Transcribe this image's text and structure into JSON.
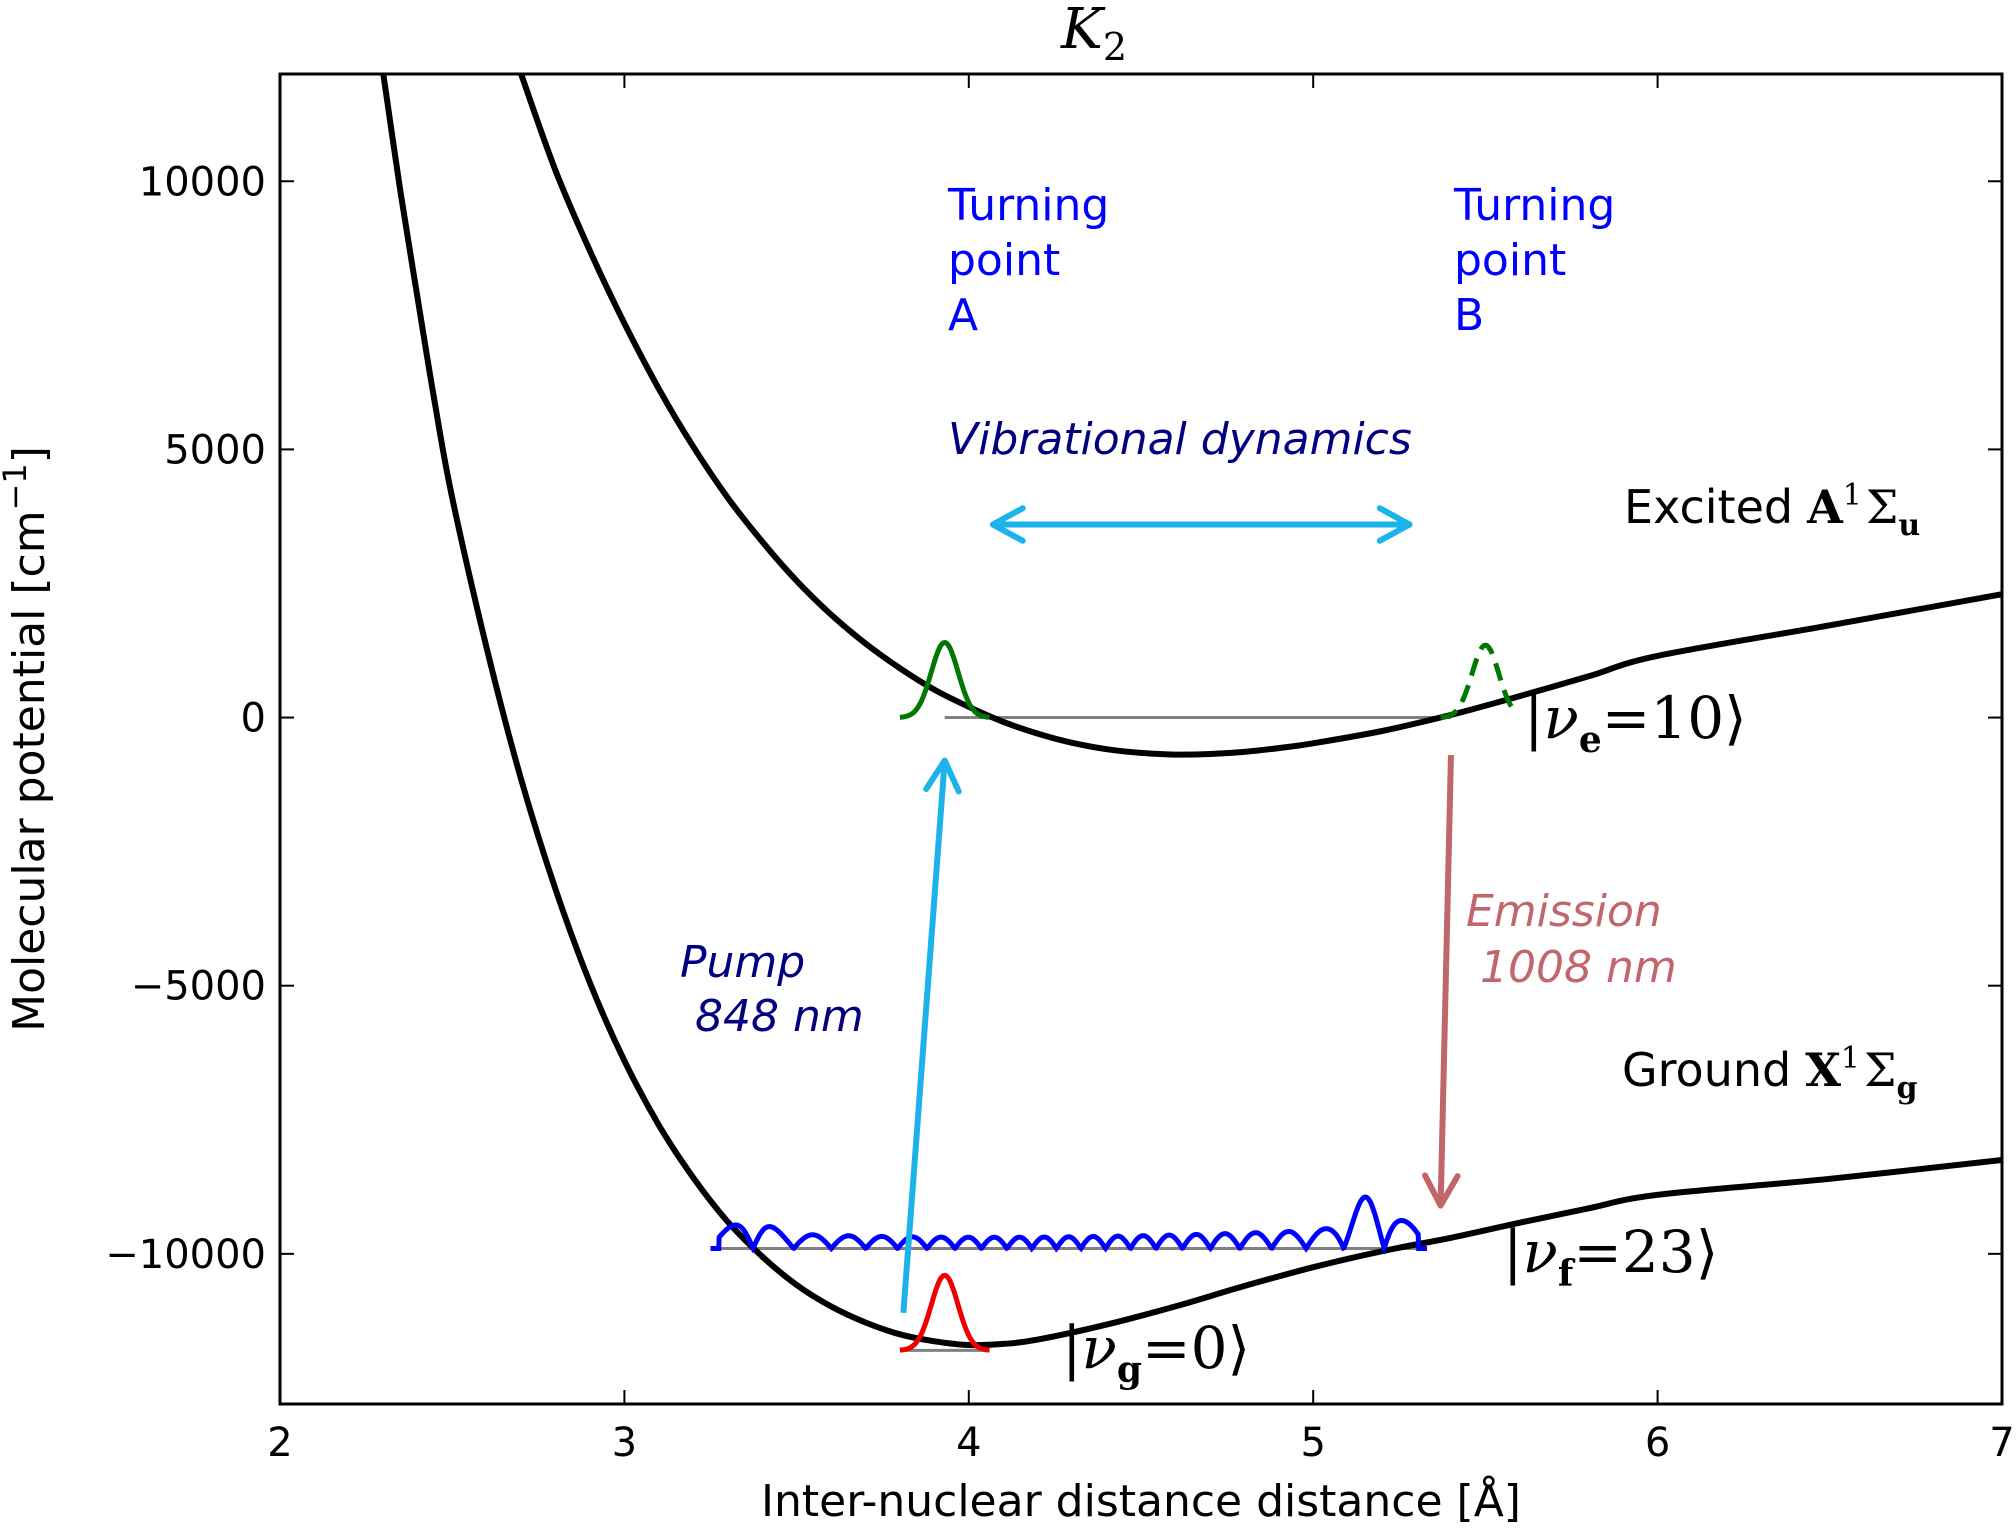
{
  "chart_data": {
    "type": "line",
    "title": "K",
    "title_sub": "2",
    "xlabel": "Inter-nuclear distance distance [Å]",
    "ylabel": "Molecular potential [cm",
    "ylabel_sup": "−1",
    "ylabel_end": "]",
    "xlim": [
      2,
      7
    ],
    "ylim": [
      -12800,
      12000
    ],
    "x_ticks": [
      2,
      3,
      4,
      5,
      6,
      7
    ],
    "x_tick_labels": [
      "2",
      "3",
      "4",
      "5",
      "6",
      "7"
    ],
    "y_ticks": [
      10000,
      5000,
      0,
      -5000,
      -10000
    ],
    "y_tick_labels": [
      "10000",
      "5000",
      "0",
      "−5000",
      "−10000"
    ],
    "grid": false,
    "series": [
      {
        "key": "excited",
        "x": [
          2.7,
          2.8,
          2.9,
          3.0,
          3.1,
          3.2,
          3.3,
          3.4,
          3.5,
          3.6,
          3.7,
          3.8,
          3.9,
          4.0,
          4.1,
          4.2,
          4.3,
          4.4,
          4.5,
          4.6,
          4.7,
          4.8,
          4.9,
          5.0,
          5.2,
          5.4,
          5.6,
          5.8,
          6.0,
          6.5,
          7.0
        ],
        "y": [
          12000,
          10200,
          8700,
          7350,
          6130,
          5050,
          4100,
          3280,
          2550,
          1920,
          1380,
          920,
          520,
          200,
          -80,
          -300,
          -470,
          -590,
          -660,
          -690,
          -680,
          -640,
          -570,
          -480,
          -250,
          50,
          400,
          770,
          1150,
          1720,
          2300
        ]
      },
      {
        "key": "ground",
        "x": [
          2.3,
          2.35,
          2.4,
          2.45,
          2.5,
          2.6,
          2.7,
          2.8,
          2.9,
          3.0,
          3.1,
          3.2,
          3.3,
          3.4,
          3.5,
          3.6,
          3.7,
          3.8,
          3.9,
          4.0,
          4.1,
          4.2,
          4.4,
          4.6,
          4.8,
          5.0,
          5.2,
          5.4,
          5.6,
          5.8,
          6.0,
          6.5,
          7.0
        ],
        "y": [
          12000,
          9800,
          7800,
          5850,
          4100,
          1300,
          -1150,
          -3200,
          -4950,
          -6400,
          -7600,
          -8580,
          -9400,
          -10050,
          -10580,
          -10980,
          -11280,
          -11500,
          -11630,
          -11700,
          -11680,
          -11600,
          -11320,
          -10980,
          -10600,
          -10250,
          -9950,
          -9700,
          -9420,
          -9150,
          -8900,
          -8600,
          -8250
        ]
      }
    ],
    "levels": [
      {
        "key": "nu_e",
        "y": 0,
        "x": [
          3.93,
          5.4
        ]
      },
      {
        "key": "nu_f",
        "y": -9900,
        "x": [
          3.25,
          5.33
        ]
      },
      {
        "key": "nu_g",
        "y": -11800,
        "x": [
          3.8,
          4.06
        ]
      }
    ],
    "wavepackets": [
      {
        "key": "green",
        "center": 3.93,
        "base": 0,
        "height": 1400,
        "width": 0.055,
        "x": [
          3.8,
          4.06
        ]
      },
      {
        "key": "green-dashed",
        "center": 5.5,
        "base": 0,
        "height": 1350,
        "width": 0.055,
        "x": [
          5.37,
          5.58
        ]
      },
      {
        "key": "red",
        "center": 3.93,
        "base": -11800,
        "height": 1400,
        "width": 0.055,
        "x": [
          3.8,
          4.06
        ]
      }
    ],
    "oscillation": {
      "x_start": 3.25,
      "x_end": 5.33,
      "base": -9900,
      "count": 23
    },
    "annotations": {
      "turning_point_a": [
        "Turning",
        "point",
        "A"
      ],
      "turning_point_b": [
        "Turning",
        "point",
        "B"
      ],
      "vibrational_dynamics": "Vibrational dynamics",
      "pump": [
        "Pump",
        "848 nm"
      ],
      "emission": [
        "Emission",
        "1008 nm"
      ],
      "excited_label": "Excited",
      "ground_label": "Ground",
      "excited_term": {
        "letter": "A",
        "sup": "1",
        "sym": "Σ",
        "sub": "u"
      },
      "ground_term": {
        "letter": "X",
        "sup": "1",
        "sym": "Σ",
        "sub": "g"
      },
      "state_e": {
        "nu": "ν",
        "sub": "e",
        "val": "=10"
      },
      "state_f": {
        "nu": "ν",
        "sub": "f",
        "val": "=23"
      },
      "state_g": {
        "nu": "ν",
        "sub": "g",
        "val": "=0"
      }
    },
    "arrows": {
      "pump": {
        "x1": 3.81,
        "y1": -11100,
        "x2": 3.93,
        "y2": -800
      },
      "emission": {
        "x1": 5.4,
        "y1": -700,
        "x2": 5.37,
        "y2": -9100
      },
      "dynamics": {
        "x1": 4.07,
        "x2": 5.28,
        "y": 3600
      }
    },
    "colors": {
      "curve": "#000000",
      "level": "#808080",
      "green": "#007700",
      "red": "#ee0000",
      "blue": "#0000ff",
      "navy": "#000080",
      "pump_arrow": "#1bb3ea",
      "emission_arrow": "#c1666b",
      "dynamics_arrow": "#1bb3ea"
    }
  }
}
